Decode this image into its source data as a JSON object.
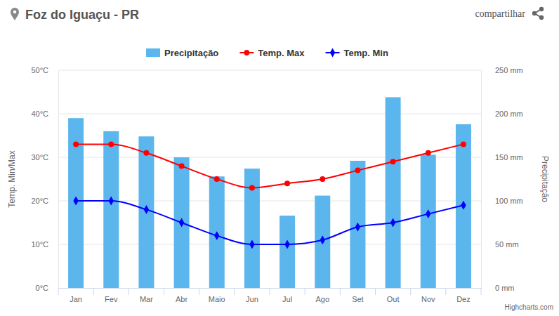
{
  "chart_data": {
    "type": "bar",
    "title": "Foz do Iguaçu - PR",
    "annotations": [
      "compartilhar",
      "Highcharts.com"
    ],
    "ylabel": "Temp. Min/Max",
    "y2label": "Precipitação",
    "categories": [
      "Jan",
      "Fev",
      "Mar",
      "Abr",
      "Maio",
      "Jun",
      "Jul",
      "Ago",
      "Set",
      "Out",
      "Nov",
      "Dez"
    ],
    "series": [
      {
        "name": "Precipitação",
        "type": "bar",
        "axis": "y2",
        "color": "#5cb6ee",
        "values": [
          195,
          180,
          174,
          150,
          128,
          137,
          83,
          106,
          146,
          219,
          153,
          188
        ]
      },
      {
        "name": "Temp. Max",
        "type": "line",
        "color": "#ff0000",
        "marker": "circle",
        "line_style": "smooth",
        "values": [
          33,
          33,
          31,
          28,
          25,
          23,
          24,
          25,
          27,
          29,
          31,
          33
        ]
      },
      {
        "name": "Temp. Min",
        "type": "line",
        "color": "#0000ff",
        "marker": "diamond",
        "line_style": "smooth",
        "values": [
          20,
          20,
          18,
          15,
          12,
          10,
          10,
          11,
          14,
          15,
          17,
          19
        ]
      }
    ],
    "ylim": [
      0,
      50
    ],
    "yticks": [
      {
        "value": 0,
        "label": "0°C"
      },
      {
        "value": 10,
        "label": "10°C"
      },
      {
        "value": 20,
        "label": "20°C"
      },
      {
        "value": 30,
        "label": "30°C"
      },
      {
        "value": 40,
        "label": "40°C"
      },
      {
        "value": 50,
        "label": "50°C"
      }
    ],
    "y2lim": [
      0,
      250
    ],
    "y2ticks": [
      {
        "value": 0,
        "label": "0 mm"
      },
      {
        "value": 50,
        "label": "50 mm"
      },
      {
        "value": 100,
        "label": "100 mm"
      },
      {
        "value": 150,
        "label": "150 mm"
      },
      {
        "value": 200,
        "label": "200 mm"
      },
      {
        "value": 250,
        "label": "250 mm"
      }
    ],
    "grid": true,
    "legend": "top"
  }
}
